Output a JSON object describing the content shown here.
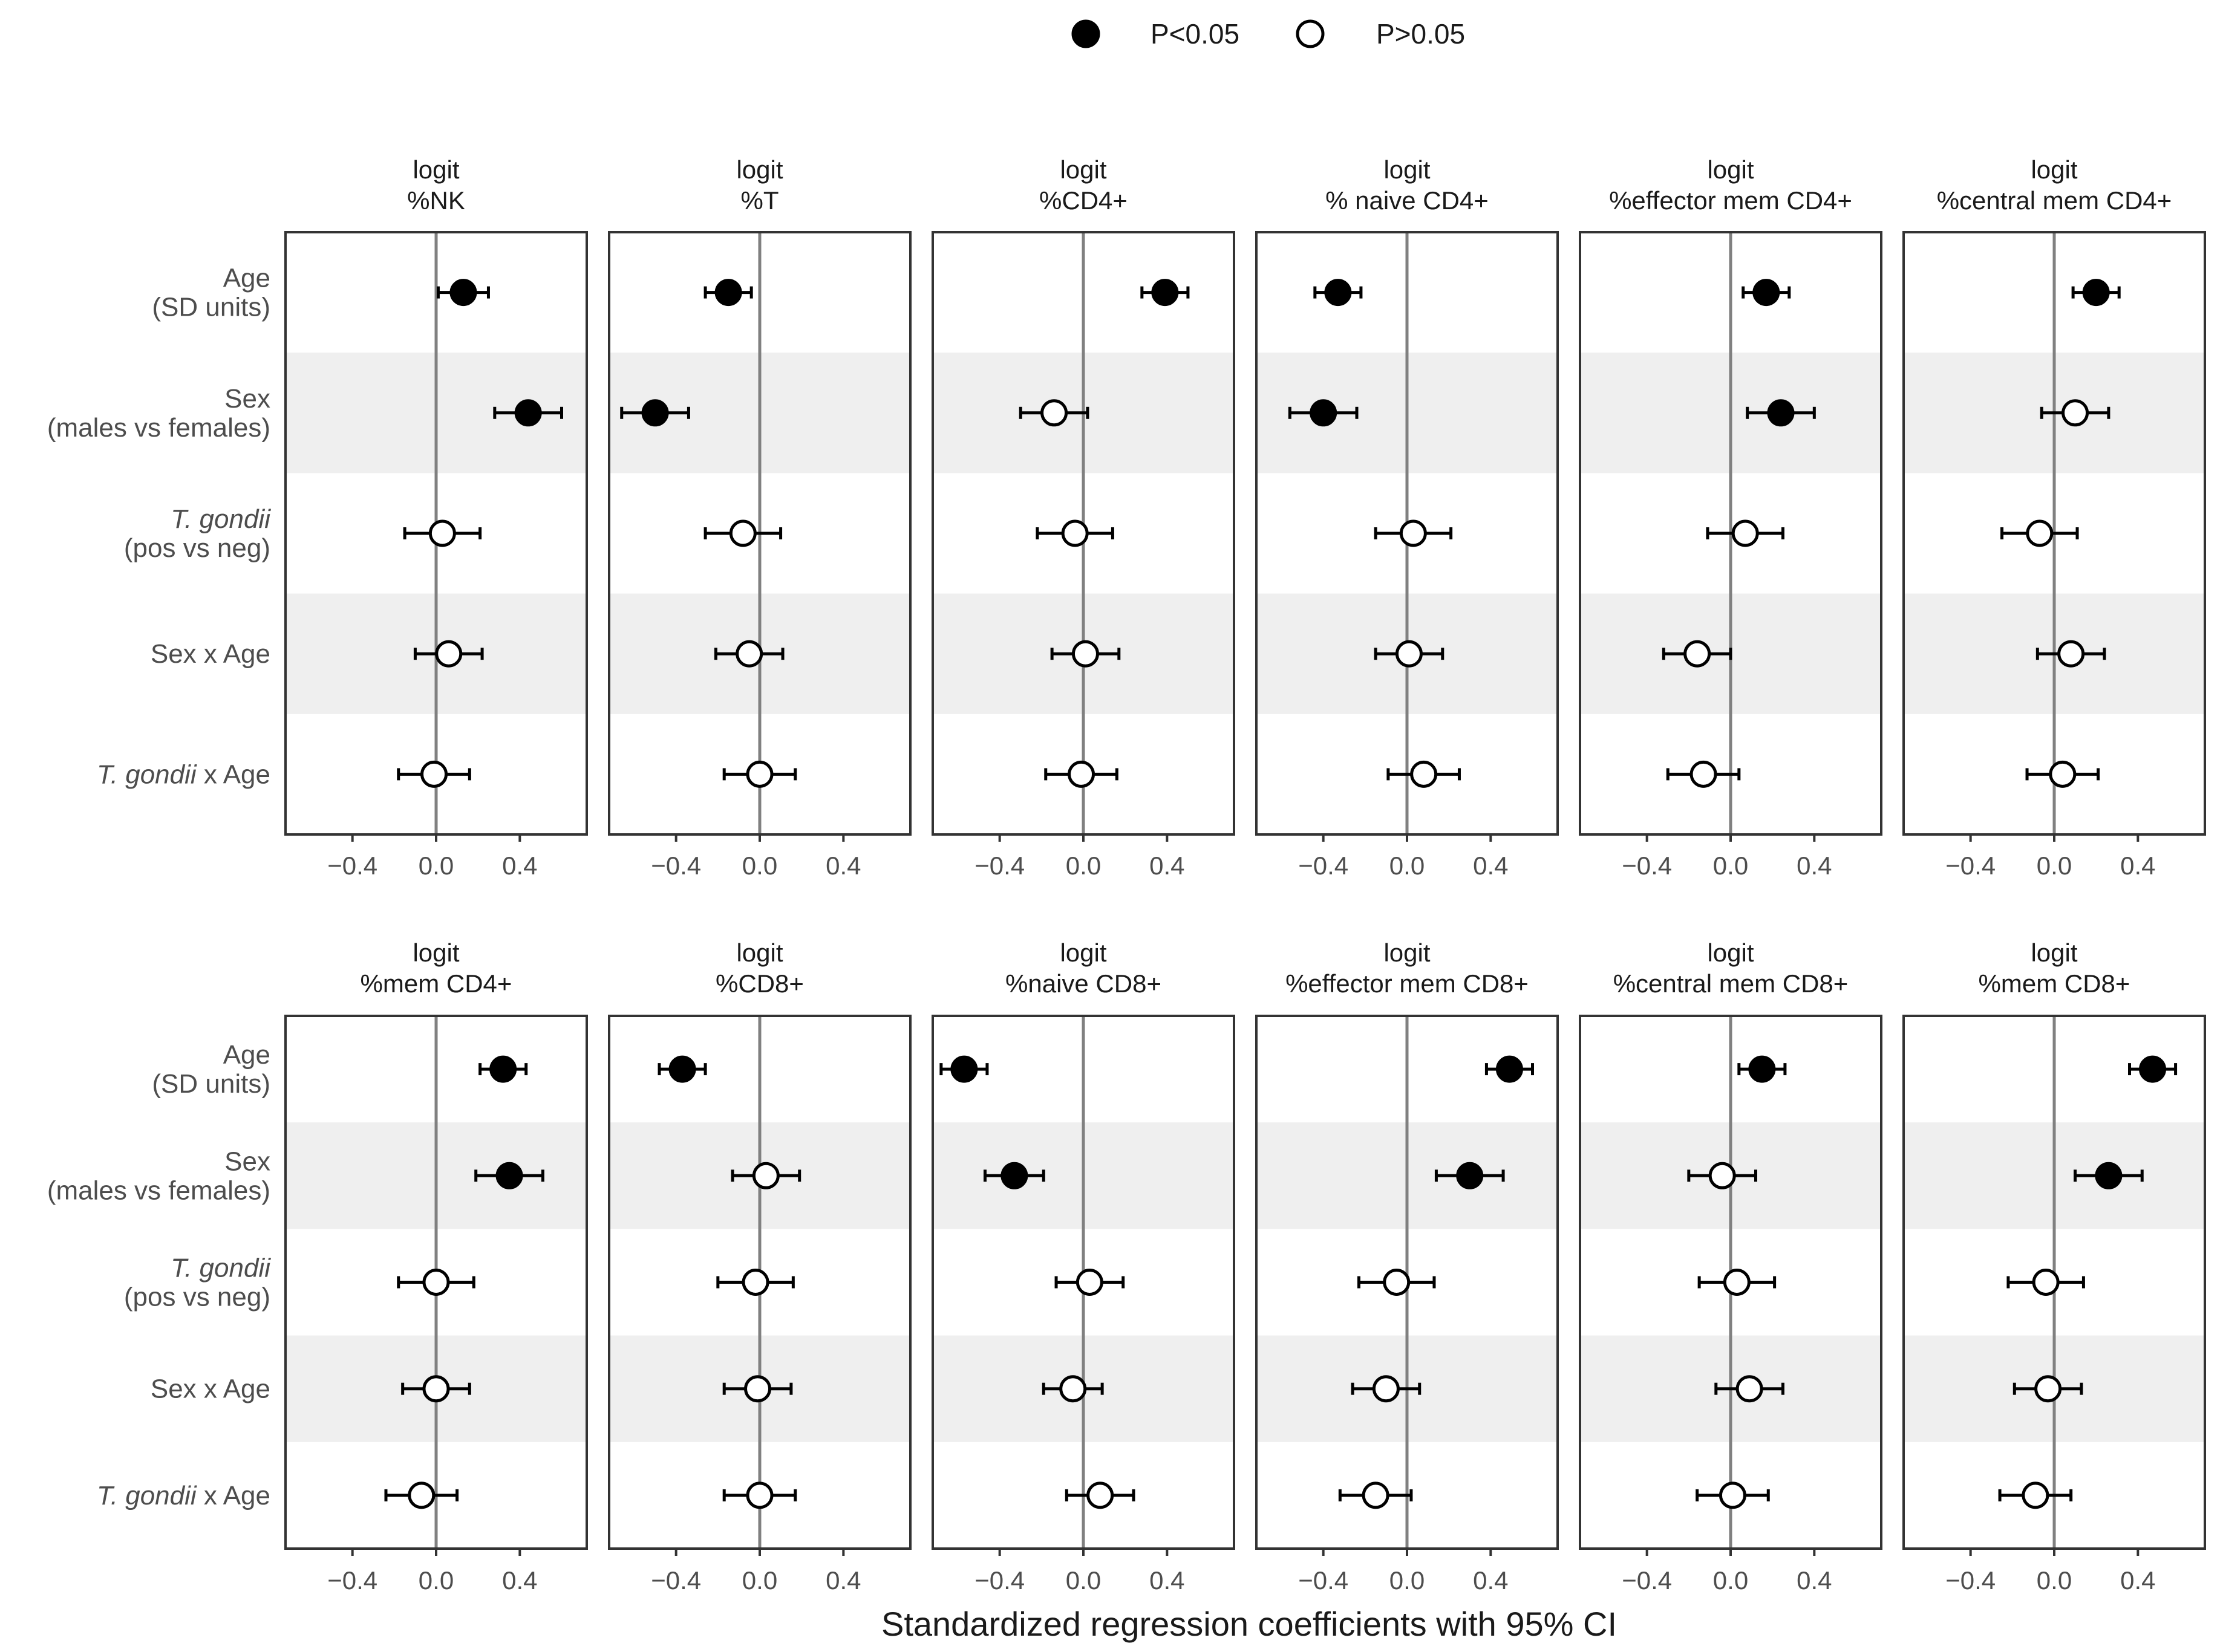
{
  "chart_data": {
    "type": "scatter",
    "subtype": "forest-plot-faceted",
    "x_title": "Standardized regression coefficients with 95% CI",
    "legend": {
      "position": "top",
      "entries": [
        {
          "label": "P<0.05",
          "filled": true
        },
        {
          "label": "P>0.05",
          "filled": false
        }
      ]
    },
    "xlim": [
      -0.72,
      0.72
    ],
    "x_ticks": [
      {
        "value": -0.4,
        "label": "−0.4"
      },
      {
        "value": 0.0,
        "label": "0.0"
      },
      {
        "value": 0.4,
        "label": "0.4"
      }
    ],
    "shaded_rows": [
      1,
      3
    ],
    "terms": [
      {
        "id": "age",
        "lines": [
          {
            "text": "Age",
            "italic": false
          },
          {
            "text": "(SD units)",
            "italic": false
          }
        ]
      },
      {
        "id": "sex",
        "lines": [
          {
            "text": "Sex",
            "italic": false
          },
          {
            "text": "(males vs females)",
            "italic": false
          }
        ]
      },
      {
        "id": "tgondii",
        "lines": [
          {
            "text": "T. gondii",
            "italic": true
          },
          {
            "text": "(pos vs neg)",
            "italic": false
          }
        ]
      },
      {
        "id": "sex_x_age",
        "lines": [
          {
            "text": "Sex x Age",
            "italic": false
          }
        ]
      },
      {
        "id": "tgondii_x_age",
        "lines": [
          {
            "text": "T. gondii",
            "italic": true,
            "suffix": " x Age"
          }
        ]
      }
    ],
    "panels": [
      {
        "title": [
          "logit",
          "%NK"
        ],
        "estimates": [
          {
            "est": 0.13,
            "lo": 0.01,
            "hi": 0.25,
            "sig": true
          },
          {
            "est": 0.44,
            "lo": 0.28,
            "hi": 0.6,
            "sig": true
          },
          {
            "est": 0.03,
            "lo": -0.15,
            "hi": 0.21,
            "sig": false
          },
          {
            "est": 0.06,
            "lo": -0.1,
            "hi": 0.22,
            "sig": false
          },
          {
            "est": -0.01,
            "lo": -0.18,
            "hi": 0.16,
            "sig": false
          }
        ]
      },
      {
        "title": [
          "logit",
          "%T"
        ],
        "estimates": [
          {
            "est": -0.15,
            "lo": -0.26,
            "hi": -0.04,
            "sig": true
          },
          {
            "est": -0.5,
            "lo": -0.66,
            "hi": -0.34,
            "sig": true
          },
          {
            "est": -0.08,
            "lo": -0.26,
            "hi": 0.1,
            "sig": false
          },
          {
            "est": -0.05,
            "lo": -0.21,
            "hi": 0.11,
            "sig": false
          },
          {
            "est": 0.0,
            "lo": -0.17,
            "hi": 0.17,
            "sig": false
          }
        ]
      },
      {
        "title": [
          "logit",
          "%CD4+"
        ],
        "estimates": [
          {
            "est": 0.39,
            "lo": 0.28,
            "hi": 0.5,
            "sig": true
          },
          {
            "est": -0.14,
            "lo": -0.3,
            "hi": 0.02,
            "sig": false
          },
          {
            "est": -0.04,
            "lo": -0.22,
            "hi": 0.14,
            "sig": false
          },
          {
            "est": 0.01,
            "lo": -0.15,
            "hi": 0.17,
            "sig": false
          },
          {
            "est": -0.01,
            "lo": -0.18,
            "hi": 0.16,
            "sig": false
          }
        ]
      },
      {
        "title": [
          "logit",
          "% naive CD4+"
        ],
        "estimates": [
          {
            "est": -0.33,
            "lo": -0.44,
            "hi": -0.22,
            "sig": true
          },
          {
            "est": -0.4,
            "lo": -0.56,
            "hi": -0.24,
            "sig": true
          },
          {
            "est": 0.03,
            "lo": -0.15,
            "hi": 0.21,
            "sig": false
          },
          {
            "est": 0.01,
            "lo": -0.15,
            "hi": 0.17,
            "sig": false
          },
          {
            "est": 0.08,
            "lo": -0.09,
            "hi": 0.25,
            "sig": false
          }
        ]
      },
      {
        "title": [
          "logit",
          "%effector mem CD4+"
        ],
        "estimates": [
          {
            "est": 0.17,
            "lo": 0.06,
            "hi": 0.28,
            "sig": true
          },
          {
            "est": 0.24,
            "lo": 0.08,
            "hi": 0.4,
            "sig": true
          },
          {
            "est": 0.07,
            "lo": -0.11,
            "hi": 0.25,
            "sig": false
          },
          {
            "est": -0.16,
            "lo": -0.32,
            "hi": 0.0,
            "sig": false
          },
          {
            "est": -0.13,
            "lo": -0.3,
            "hi": 0.04,
            "sig": false
          }
        ]
      },
      {
        "title": [
          "logit",
          "%central mem CD4+"
        ],
        "estimates": [
          {
            "est": 0.2,
            "lo": 0.09,
            "hi": 0.31,
            "sig": true
          },
          {
            "est": 0.1,
            "lo": -0.06,
            "hi": 0.26,
            "sig": false
          },
          {
            "est": -0.07,
            "lo": -0.25,
            "hi": 0.11,
            "sig": false
          },
          {
            "est": 0.08,
            "lo": -0.08,
            "hi": 0.24,
            "sig": false
          },
          {
            "est": 0.04,
            "lo": -0.13,
            "hi": 0.21,
            "sig": false
          }
        ]
      },
      {
        "title": [
          "logit",
          "%mem CD4+"
        ],
        "estimates": [
          {
            "est": 0.32,
            "lo": 0.21,
            "hi": 0.43,
            "sig": true
          },
          {
            "est": 0.35,
            "lo": 0.19,
            "hi": 0.51,
            "sig": true
          },
          {
            "est": 0.0,
            "lo": -0.18,
            "hi": 0.18,
            "sig": false
          },
          {
            "est": 0.0,
            "lo": -0.16,
            "hi": 0.16,
            "sig": false
          },
          {
            "est": -0.07,
            "lo": -0.24,
            "hi": 0.1,
            "sig": false
          }
        ]
      },
      {
        "title": [
          "logit",
          "%CD8+"
        ],
        "estimates": [
          {
            "est": -0.37,
            "lo": -0.48,
            "hi": -0.26,
            "sig": true
          },
          {
            "est": 0.03,
            "lo": -0.13,
            "hi": 0.19,
            "sig": false
          },
          {
            "est": -0.02,
            "lo": -0.2,
            "hi": 0.16,
            "sig": false
          },
          {
            "est": -0.01,
            "lo": -0.17,
            "hi": 0.15,
            "sig": false
          },
          {
            "est": 0.0,
            "lo": -0.17,
            "hi": 0.17,
            "sig": false
          }
        ]
      },
      {
        "title": [
          "logit",
          "%naive CD8+"
        ],
        "estimates": [
          {
            "est": -0.57,
            "lo": -0.68,
            "hi": -0.46,
            "sig": true
          },
          {
            "est": -0.33,
            "lo": -0.47,
            "hi": -0.19,
            "sig": true
          },
          {
            "est": 0.03,
            "lo": -0.13,
            "hi": 0.19,
            "sig": false
          },
          {
            "est": -0.05,
            "lo": -0.19,
            "hi": 0.09,
            "sig": false
          },
          {
            "est": 0.08,
            "lo": -0.08,
            "hi": 0.24,
            "sig": false
          }
        ]
      },
      {
        "title": [
          "logit",
          "%effector mem CD8+"
        ],
        "estimates": [
          {
            "est": 0.49,
            "lo": 0.38,
            "hi": 0.6,
            "sig": true
          },
          {
            "est": 0.3,
            "lo": 0.14,
            "hi": 0.46,
            "sig": true
          },
          {
            "est": -0.05,
            "lo": -0.23,
            "hi": 0.13,
            "sig": false
          },
          {
            "est": -0.1,
            "lo": -0.26,
            "hi": 0.06,
            "sig": false
          },
          {
            "est": -0.15,
            "lo": -0.32,
            "hi": 0.02,
            "sig": false
          }
        ]
      },
      {
        "title": [
          "logit",
          "%central mem CD8+"
        ],
        "estimates": [
          {
            "est": 0.15,
            "lo": 0.04,
            "hi": 0.26,
            "sig": true
          },
          {
            "est": -0.04,
            "lo": -0.2,
            "hi": 0.12,
            "sig": false
          },
          {
            "est": 0.03,
            "lo": -0.15,
            "hi": 0.21,
            "sig": false
          },
          {
            "est": 0.09,
            "lo": -0.07,
            "hi": 0.25,
            "sig": false
          },
          {
            "est": 0.01,
            "lo": -0.16,
            "hi": 0.18,
            "sig": false
          }
        ]
      },
      {
        "title": [
          "logit",
          "%mem CD8+"
        ],
        "estimates": [
          {
            "est": 0.47,
            "lo": 0.36,
            "hi": 0.58,
            "sig": true
          },
          {
            "est": 0.26,
            "lo": 0.1,
            "hi": 0.42,
            "sig": true
          },
          {
            "est": -0.04,
            "lo": -0.22,
            "hi": 0.14,
            "sig": false
          },
          {
            "est": -0.03,
            "lo": -0.19,
            "hi": 0.13,
            "sig": false
          },
          {
            "est": -0.09,
            "lo": -0.26,
            "hi": 0.08,
            "sig": false
          }
        ]
      }
    ]
  },
  "colors": {
    "panel_border": "#333333",
    "shade": "#efefef",
    "zero_line": "#808080",
    "point_fill": "#000000",
    "point_open": "#ffffff",
    "errorbar": "#000000"
  }
}
